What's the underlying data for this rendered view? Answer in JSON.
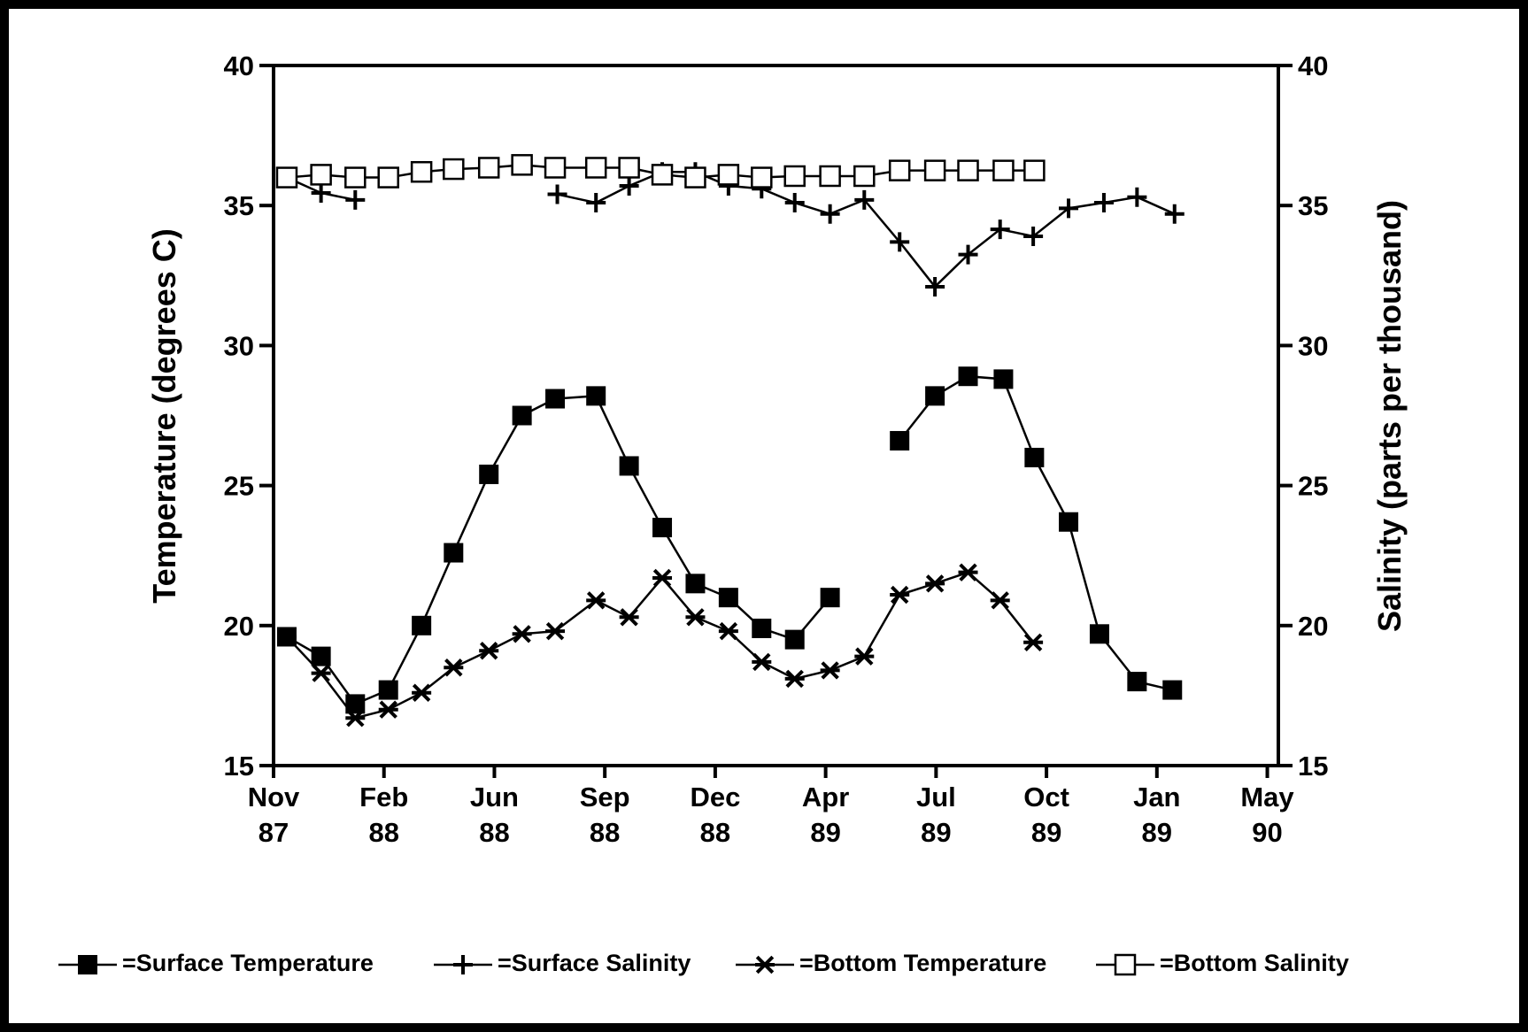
{
  "chart_data": {
    "type": "line",
    "xlabel_left": null,
    "ylabel": "Temperature (degrees C)",
    "y2label": "Salinity (parts per thousand)",
    "xlim": [
      0,
      9.1
    ],
    "xticks": [
      {
        "value": 0,
        "label": "Nov 87"
      },
      {
        "value": 1,
        "label": "Feb 88"
      },
      {
        "value": 2,
        "label": "Jun 88"
      },
      {
        "value": 3,
        "label": "Sep 88"
      },
      {
        "value": 4,
        "label": "Dec 88"
      },
      {
        "value": 5,
        "label": "Apr 89"
      },
      {
        "value": 6,
        "label": "Jul 89"
      },
      {
        "value": 7,
        "label": "Oct 89"
      },
      {
        "value": 8,
        "label": "Jan 89"
      },
      {
        "value": 9,
        "label": "May 90"
      }
    ],
    "ylim": [
      15,
      40
    ],
    "yticks": [
      15,
      20,
      25,
      30,
      35,
      40
    ],
    "y2lim": [
      15,
      40
    ],
    "y2ticks": [
      15,
      20,
      25,
      30,
      35,
      40
    ],
    "series": [
      {
        "name": "=Surface Temperature",
        "color": "#000000",
        "marker": "square-filled",
        "x": [
          0.12,
          0.43,
          0.74,
          1.04,
          1.34,
          1.63,
          1.95,
          2.25,
          2.55,
          2.92,
          3.22,
          3.52,
          3.82,
          4.12,
          4.42,
          4.72,
          5.04,
          5.35,
          5.67,
          5.99,
          6.29,
          6.61,
          6.89,
          7.2,
          7.48,
          7.82,
          8.14
        ],
        "values": [
          19.6,
          18.9,
          17.2,
          17.7,
          20.0,
          22.6,
          25.4,
          27.5,
          28.1,
          28.2,
          25.7,
          23.5,
          21.5,
          21.0,
          19.9,
          19.5,
          21.0,
          null,
          26.6,
          28.2,
          28.9,
          28.8,
          26.0,
          23.7,
          19.7,
          18.0,
          17.7
        ]
      },
      {
        "name": "=Surface Salinity",
        "color": "#000000",
        "marker": "plus",
        "axis": "y2",
        "x": [
          0.12,
          0.43,
          0.74,
          1.6,
          2.57,
          2.92,
          3.22,
          3.52,
          3.82,
          4.12,
          4.42,
          4.72,
          5.04,
          5.35,
          5.67,
          5.99,
          6.29,
          6.58,
          6.88,
          7.2,
          7.52,
          7.82,
          8.16
        ],
        "values": [
          36.0,
          35.45,
          35.2,
          null,
          35.4,
          35.1,
          35.7,
          36.2,
          36.2,
          35.7,
          35.6,
          35.1,
          34.7,
          35.2,
          33.7,
          32.1,
          33.25,
          34.15,
          33.9,
          34.9,
          35.1,
          35.3,
          34.7
        ]
      },
      {
        "name": "=Bottom Temperature",
        "color": "#000000",
        "marker": "asterisk",
        "x": [
          0.12,
          0.43,
          0.74,
          1.04,
          1.34,
          1.63,
          1.95,
          2.25,
          2.55,
          2.92,
          3.22,
          3.52,
          3.82,
          4.12,
          4.42,
          4.72,
          5.04,
          5.35,
          5.67,
          5.99,
          6.29,
          6.58,
          6.88
        ],
        "values": [
          19.6,
          18.3,
          16.7,
          17.0,
          17.6,
          18.5,
          19.1,
          19.7,
          19.8,
          20.9,
          20.3,
          21.7,
          20.3,
          19.8,
          18.7,
          18.1,
          18.4,
          18.9,
          21.1,
          21.5,
          21.9,
          20.9,
          19.4
        ]
      },
      {
        "name": "=Bottom Salinity",
        "color": "#000000",
        "marker": "square-open",
        "axis": "y2",
        "x": [
          0.12,
          0.43,
          0.74,
          1.04,
          1.34,
          1.63,
          1.95,
          2.25,
          2.55,
          2.92,
          3.22,
          3.52,
          3.82,
          4.12,
          4.42,
          4.72,
          5.04,
          5.35,
          5.67,
          5.99,
          6.29,
          6.61,
          6.89
        ],
        "values": [
          36.0,
          36.1,
          36.0,
          36.0,
          36.2,
          36.3,
          36.35,
          36.45,
          36.35,
          36.35,
          36.35,
          36.1,
          36.0,
          36.1,
          36.0,
          36.05,
          36.05,
          36.05,
          36.25,
          36.25,
          36.25,
          36.25,
          36.25
        ]
      }
    ]
  }
}
